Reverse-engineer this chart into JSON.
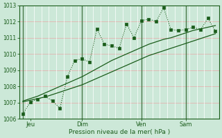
{
  "background_color": "#cce8d8",
  "line_color": "#1a5c1a",
  "ylim": [
    1006,
    1013
  ],
  "yticks": [
    1006,
    1007,
    1008,
    1009,
    1010,
    1011,
    1012,
    1013
  ],
  "xlabel": "Pression niveau de la mer( hPa )",
  "day_labels": [
    "Jeu",
    "Dim",
    "Ven",
    "Sam"
  ],
  "day_vline_positions": [
    0,
    8,
    16,
    22
  ],
  "x_tick_positions": [
    1,
    8,
    16,
    22
  ],
  "total_points": 27,
  "line_jagged": [
    1006.3,
    1007.05,
    1007.2,
    1007.4,
    1007.1,
    1006.65,
    1008.6,
    1009.6,
    1009.7,
    1009.5,
    1011.55,
    1010.6,
    1010.5,
    1010.35,
    1011.85,
    1011.0,
    1012.05,
    1012.15,
    1012.0,
    1012.85,
    1011.5,
    1011.45,
    1011.5,
    1011.65,
    1011.5,
    1012.2,
    1011.4
  ],
  "line_low": [
    1007.05,
    1007.15,
    1007.25,
    1007.35,
    1007.5,
    1007.65,
    1007.8,
    1007.95,
    1008.1,
    1008.3,
    1008.5,
    1008.7,
    1008.9,
    1009.1,
    1009.3,
    1009.5,
    1009.7,
    1009.9,
    1010.05,
    1010.2,
    1010.35,
    1010.5,
    1010.65,
    1010.8,
    1010.95,
    1011.1,
    1011.25
  ],
  "line_high": [
    1007.1,
    1007.25,
    1007.4,
    1007.6,
    1007.8,
    1008.0,
    1008.2,
    1008.4,
    1008.6,
    1008.85,
    1009.1,
    1009.35,
    1009.6,
    1009.8,
    1010.0,
    1010.2,
    1010.4,
    1010.6,
    1010.75,
    1010.9,
    1011.0,
    1011.15,
    1011.3,
    1011.45,
    1011.55,
    1011.65,
    1011.75
  ]
}
